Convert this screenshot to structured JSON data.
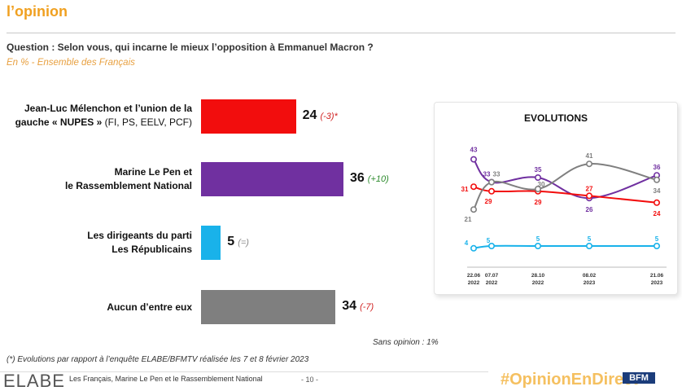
{
  "header": {
    "title": "l’opinion"
  },
  "question": "Question : Selon vous, qui incarne le mieux l’opposition à Emmanuel Macron ?",
  "subtitle": "En % - Ensemble des Français",
  "chart_data": [
    {
      "type": "bar",
      "orientation": "horizontal",
      "categories": [
        "Jean-Luc Mélenchon et l’union de la gauche « NUPES » (FI, PS, EELV, PCF)",
        "Marine Le Pen et le Rassemblement National",
        "Les dirigeants du parti Les Républicains",
        "Aucun d’entre eux"
      ],
      "label_lines": [
        [
          "Jean-Luc Mélenchon et l’union de la",
          "gauche « NUPES »",
          " (FI, PS, EELV, PCF)"
        ],
        [
          "Marine Le Pen et",
          "le Rassemblement National"
        ],
        [
          "Les dirigeants du parti",
          "Les Républicains"
        ],
        [
          "Aucun d’entre eux"
        ]
      ],
      "values": [
        24,
        36,
        5,
        34
      ],
      "value_labels": [
        "24",
        "36",
        "5",
        "34"
      ],
      "evolutions": [
        "(-3)*",
        "(+10)",
        "(=)",
        "(-7)"
      ],
      "evolution_kind": [
        "down",
        "up",
        "neutral",
        "down"
      ],
      "colors": [
        "#f20d0d",
        "#7030a0",
        "#19b2ea",
        "#7f7f7f"
      ],
      "xlim": [
        0,
        40
      ]
    },
    {
      "type": "line",
      "title": "EVOLUTIONS",
      "x": [
        "22.06 2022",
        "07.07 2022",
        "28.10 2022",
        "08.02 2023",
        "21.06 2023"
      ],
      "x_lines": [
        [
          "22.06",
          "2022"
        ],
        [
          "07.07",
          "2022"
        ],
        [
          "28.10",
          "2022"
        ],
        [
          "08.02",
          "2023"
        ],
        [
          "21.06",
          "2023"
        ]
      ],
      "series": [
        {
          "color": "#7030a0",
          "values": [
            43,
            33,
            35,
            26,
            36
          ]
        },
        {
          "color": "#f20d0d",
          "values": [
            31,
            29,
            29,
            27,
            24
          ]
        },
        {
          "color": "#7f7f7f",
          "values": [
            21,
            33,
            30,
            41,
            34
          ]
        },
        {
          "color": "#19b2ea",
          "values": [
            4,
            5,
            5,
            5,
            5
          ]
        }
      ],
      "ylim": [
        0,
        50
      ]
    }
  ],
  "notes": {
    "no_opinion": "Sans opinion : 1%",
    "footnote": "(*) Evolutions par rapport à l’enquête ELABE/BFMTV réalisée les 7 et 8 février 2023"
  },
  "footer": {
    "logo": "ELABE",
    "text": "Les Français, Marine Le Pen et le Rassemblement National",
    "page": "- 10 -",
    "hashtag": "#OpinionEnDirect",
    "tv": "BFM"
  }
}
